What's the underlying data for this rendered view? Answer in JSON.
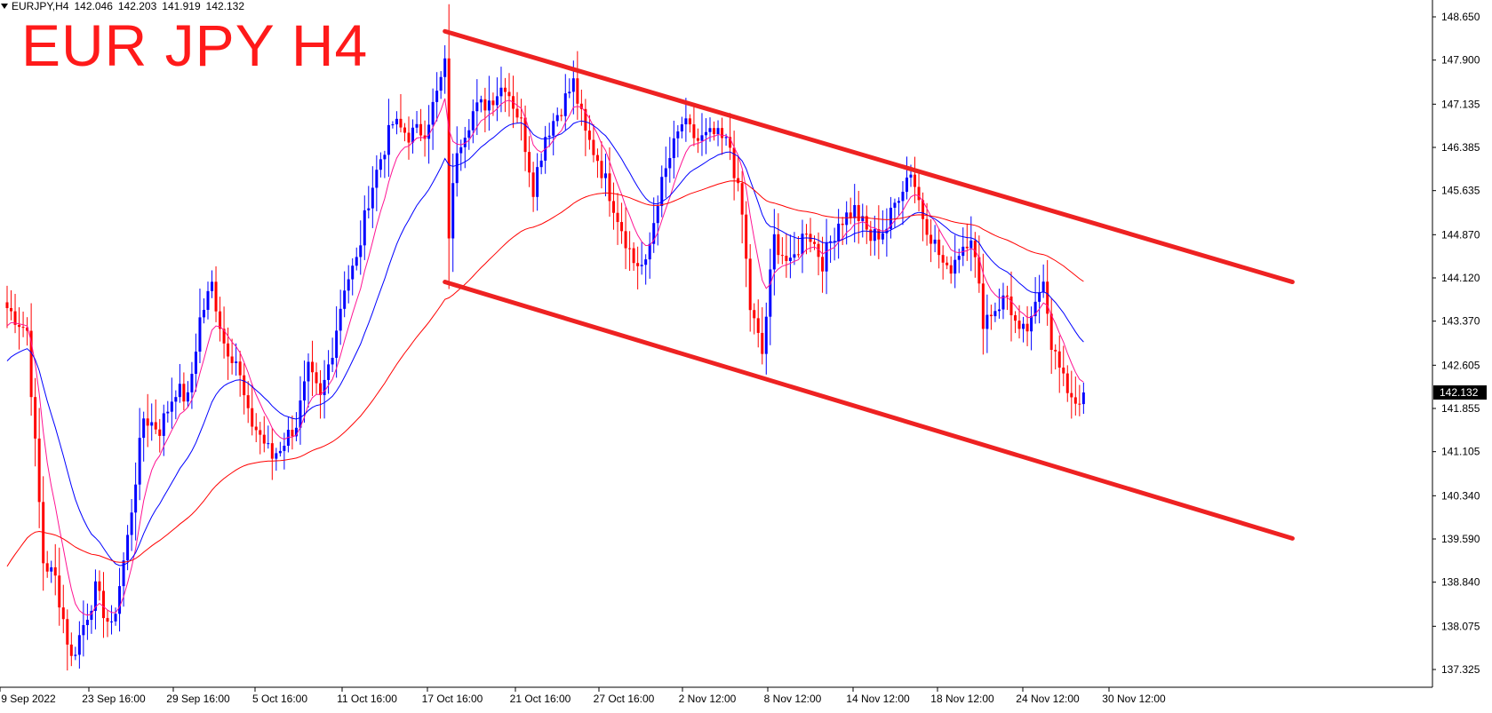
{
  "header": {
    "symbol": "EURJPY,H4",
    "open": "142.046",
    "high": "142.203",
    "low": "141.919",
    "close": "142.132",
    "overlay_title": "EUR JPY H4"
  },
  "colors": {
    "bull": "#0000ff",
    "bear": "#ff0000",
    "ma_fast": "#ff1493",
    "ma_mid": "#0000ff",
    "ma_slow": "#ff0000",
    "channel": "#ee2222",
    "price_tag_bg": "#000000",
    "price_tag_fg": "#ffffff"
  },
  "chart_data": {
    "type": "candlestick",
    "instrument": "EURJPY",
    "timeframe": "H4",
    "y_ticks": [
      "148.650",
      "147.900",
      "147.135",
      "146.385",
      "145.635",
      "144.870",
      "144.120",
      "143.370",
      "142.605",
      "141.855",
      "141.105",
      "140.340",
      "139.590",
      "138.840",
      "138.075",
      "137.325"
    ],
    "x_ticks": [
      "9 Sep 2022",
      "23 Sep 16:00",
      "29 Sep 16:00",
      "5 Oct 16:00",
      "11 Oct 16:00",
      "17 Oct 16:00",
      "21 Oct 16:00",
      "27 Oct 16:00",
      "2 Nov 12:00",
      "8 Nov 12:00",
      "14 Nov 12:00",
      "18 Nov 12:00",
      "24 Nov 12:00",
      "30 Nov 12:00"
    ],
    "ylim": [
      137.2,
      148.8
    ],
    "current_price": "142.132",
    "price_path": [
      [
        0,
        143.6
      ],
      [
        5,
        143.2
      ],
      [
        9,
        139.2
      ],
      [
        12,
        138.9
      ],
      [
        16,
        137.5
      ],
      [
        22,
        138.7
      ],
      [
        26,
        138.0
      ],
      [
        30,
        139.6
      ],
      [
        34,
        141.7
      ],
      [
        38,
        141.5
      ],
      [
        42,
        142.2
      ],
      [
        45,
        142.0
      ],
      [
        48,
        143.4
      ],
      [
        51,
        144.0
      ],
      [
        54,
        143.0
      ],
      [
        57,
        142.7
      ],
      [
        60,
        141.7
      ],
      [
        63,
        141.4
      ],
      [
        66,
        141.0
      ],
      [
        69,
        141.3
      ],
      [
        72,
        141.6
      ],
      [
        75,
        142.5
      ],
      [
        78,
        142.0
      ],
      [
        81,
        142.9
      ],
      [
        84,
        144.0
      ],
      [
        87,
        144.4
      ],
      [
        90,
        145.5
      ],
      [
        93,
        146.2
      ],
      [
        96,
        146.8
      ],
      [
        100,
        146.6
      ],
      [
        104,
        146.7
      ],
      [
        107,
        147.3
      ],
      [
        109,
        147.8
      ],
      [
        110,
        144.9
      ],
      [
        112,
        146.4
      ],
      [
        116,
        147.0
      ],
      [
        120,
        147.2
      ],
      [
        124,
        147.5
      ],
      [
        128,
        146.8
      ],
      [
        131,
        145.7
      ],
      [
        134,
        146.6
      ],
      [
        138,
        147.1
      ],
      [
        141,
        147.5
      ],
      [
        144,
        146.6
      ],
      [
        147,
        146.2
      ],
      [
        150,
        145.6
      ],
      [
        153,
        145.0
      ],
      [
        156,
        144.4
      ],
      [
        159,
        144.3
      ],
      [
        162,
        145.5
      ],
      [
        165,
        146.2
      ],
      [
        168,
        146.8
      ],
      [
        172,
        146.5
      ],
      [
        176,
        146.6
      ],
      [
        180,
        146.4
      ],
      [
        183,
        145.2
      ],
      [
        185,
        143.6
      ],
      [
        188,
        142.8
      ],
      [
        191,
        144.8
      ],
      [
        195,
        144.3
      ],
      [
        199,
        145.0
      ],
      [
        203,
        144.4
      ],
      [
        207,
        145.1
      ],
      [
        211,
        145.3
      ],
      [
        215,
        144.8
      ],
      [
        219,
        145.0
      ],
      [
        222,
        145.6
      ],
      [
        225,
        146.0
      ],
      [
        228,
        145.2
      ],
      [
        231,
        144.7
      ],
      [
        234,
        144.2
      ],
      [
        237,
        144.6
      ],
      [
        240,
        144.9
      ],
      [
        243,
        143.4
      ],
      [
        246,
        143.6
      ],
      [
        249,
        143.8
      ],
      [
        252,
        143.1
      ],
      [
        255,
        143.3
      ],
      [
        258,
        144.2
      ],
      [
        260,
        143.0
      ],
      [
        263,
        142.3
      ],
      [
        266,
        142.0
      ],
      [
        268,
        142.1
      ]
    ],
    "moving_averages": [
      {
        "key": "ma_fast",
        "period": "fast"
      },
      {
        "key": "ma_mid",
        "period": "medium"
      },
      {
        "key": "ma_slow",
        "period": "slow"
      }
    ],
    "channel_lines": [
      {
        "from": {
          "time_index": 109,
          "price": 148.4
        },
        "to": {
          "time_index": 320,
          "price": 144.05
        }
      },
      {
        "from": {
          "time_index": 109,
          "price": 144.05
        },
        "to": {
          "time_index": 320,
          "price": 139.6
        }
      }
    ],
    "grid": false
  }
}
